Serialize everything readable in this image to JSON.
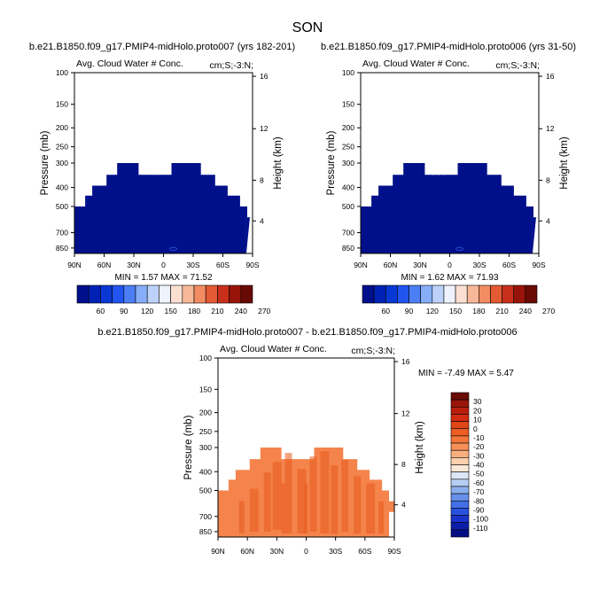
{
  "figure_title": "SON",
  "colors": {
    "navy": "#00108a",
    "diff_base": "#f4844c",
    "diff_dark": "#e85a1c",
    "frame": "#000000"
  },
  "cb1_colors": [
    "#000f8c",
    "#0022b4",
    "#0a38d4",
    "#2255f0",
    "#4c7ef6",
    "#86aef8",
    "#bcd2fa",
    "#eef2fc",
    "#fbe0d2",
    "#f6b898",
    "#f28c62",
    "#e35a33",
    "#c8301c",
    "#98140a",
    "#6a0a04"
  ],
  "cb2_colors": [
    "#6a0a04",
    "#98140a",
    "#b81e0c",
    "#d42c10",
    "#e04616",
    "#ec5e22",
    "#f4763a",
    "#f79058",
    "#fab07e",
    "#fcd0ae",
    "#fbe8d8",
    "#dbe6f6",
    "#b6cef2",
    "#8cb0ee",
    "#6890ea",
    "#4470e8",
    "#2a52e0",
    "#1834cc",
    "#0c1ea8",
    "#060e84"
  ],
  "chart_data": [
    {
      "type": "heatmap",
      "title": "b.e21.B1850.f09_g17.PMIP4-midHolo.proto007 (yrs 182-201)",
      "left_label": "Avg. Cloud Water # Conc.",
      "right_label": "cm;S;-3:N;",
      "min_text": "MIN =  1.57  MAX = 71.52",
      "ylabel": "Pressure (mb)",
      "y2label": "Height (km)",
      "x_ticks": [
        "90N",
        "60N",
        "30N",
        "0",
        "30S",
        "60S",
        "90S"
      ],
      "y_ticks": [
        "100",
        "150",
        "200",
        "250",
        "300",
        "400",
        "500",
        "700",
        "850"
      ],
      "y2_ticks": [
        "16",
        "12",
        "8",
        "4"
      ],
      "colorbar_labels": [
        "60",
        "90",
        "120",
        "150",
        "180",
        "210",
        "240",
        "270"
      ]
    },
    {
      "type": "heatmap",
      "title": "b.e21.B1850.f09_g17.PMIP4-midHolo.proto006 (yrs 31-50)",
      "left_label": "Avg. Cloud Water # Conc.",
      "right_label": "cm;S;-3:N;",
      "min_text": "MIN =  1.62  MAX = 71.93",
      "ylabel": "Pressure (mb)",
      "y2label": "Height (km)",
      "x_ticks": [
        "90N",
        "60N",
        "30N",
        "0",
        "30S",
        "60S",
        "90S"
      ],
      "y_ticks": [
        "100",
        "150",
        "200",
        "250",
        "300",
        "400",
        "500",
        "700",
        "850"
      ],
      "y2_ticks": [
        "16",
        "12",
        "8",
        "4"
      ],
      "colorbar_labels": [
        "60",
        "90",
        "120",
        "150",
        "180",
        "210",
        "240",
        "270"
      ]
    },
    {
      "type": "heatmap",
      "title": "b.e21.B1850.f09_g17.PMIP4-midHolo.proto007 - b.e21.B1850.f09_g17.PMIP4-midHolo.proto006",
      "left_label": "Avg. Cloud Water # Conc.",
      "right_label": "cm;S;-3:N;",
      "min_text": "MIN = -7.49  MAX =  5.47",
      "ylabel": "Pressure (mb)",
      "y2label": "Height (km)",
      "x_ticks": [
        "90N",
        "60N",
        "30N",
        "0",
        "30S",
        "60S",
        "90S"
      ],
      "y_ticks": [
        "100",
        "150",
        "200",
        "250",
        "300",
        "400",
        "500",
        "700",
        "850"
      ],
      "y2_ticks": [
        "16",
        "12",
        "8",
        "4"
      ],
      "colorbar_labels": [
        "30",
        "20",
        "10",
        "0",
        "-10",
        "-20",
        "-30",
        "-40",
        "-50",
        "-60",
        "-70",
        "-80",
        "-90",
        "-100",
        "-110"
      ]
    }
  ]
}
